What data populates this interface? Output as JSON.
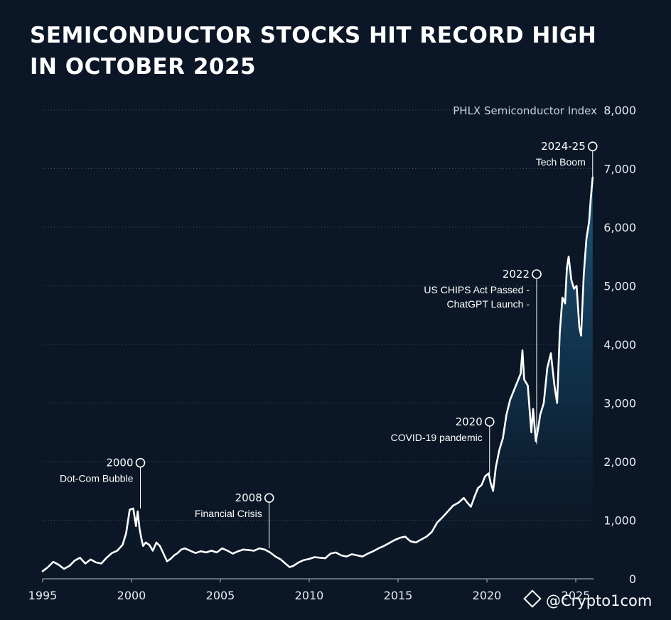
{
  "title": {
    "line1": "SEMICONDUCTOR STOCKS HIT RECORD HIGH",
    "line2": "IN OCTOBER 2025"
  },
  "watermark": {
    "text": "@Crypto1com",
    "icon": "binance-diamond-icon"
  },
  "colors": {
    "background": "#0b1726",
    "line": "#ffffff",
    "area_top": "#1f5a80",
    "grid": "#3f5668"
  },
  "chart_data": {
    "type": "area",
    "title": "SEMICONDUCTOR STOCKS HIT RECORD HIGH IN OCTOBER 2025",
    "series_name": "PHLX Semiconductor Index",
    "xlabel": "",
    "ylabel": "",
    "xlim": [
      1995,
      2026
    ],
    "ylim": [
      0,
      8000
    ],
    "grid": true,
    "y_axis_position": "right",
    "y_ticks": [
      0,
      1000,
      2000,
      3000,
      4000,
      5000,
      6000,
      7000,
      8000
    ],
    "y_tick_labels": [
      "0",
      "1,000",
      "2,000",
      "3,000",
      "4,000",
      "5,000",
      "6,000",
      "7,000",
      "8,000"
    ],
    "x_ticks": [
      1995,
      2000,
      2005,
      2010,
      2015,
      2020,
      2025
    ],
    "x_tick_labels": [
      "1995",
      "2000",
      "2005",
      "2010",
      "2015",
      "2020",
      "2025"
    ],
    "x": [
      1995.0,
      1995.3,
      1995.6,
      1995.9,
      1996.2,
      1996.5,
      1996.8,
      1997.1,
      1997.4,
      1997.7,
      1998.0,
      1998.3,
      1998.6,
      1998.9,
      1999.2,
      1999.5,
      1999.7,
      1999.9,
      2000.1,
      2000.25,
      2000.35,
      2000.45,
      2000.55,
      2000.65,
      2000.8,
      2001.0,
      2001.2,
      2001.4,
      2001.6,
      2001.8,
      2002.0,
      2002.2,
      2002.4,
      2002.6,
      2002.8,
      2003.0,
      2003.3,
      2003.6,
      2003.9,
      2004.2,
      2004.5,
      2004.8,
      2005.1,
      2005.4,
      2005.7,
      2006.0,
      2006.3,
      2006.6,
      2006.9,
      2007.2,
      2007.5,
      2007.8,
      2008.1,
      2008.4,
      2008.7,
      2008.9,
      2009.1,
      2009.4,
      2009.7,
      2010.0,
      2010.3,
      2010.6,
      2010.9,
      2011.2,
      2011.5,
      2011.8,
      2012.1,
      2012.4,
      2012.7,
      2013.0,
      2013.3,
      2013.6,
      2013.9,
      2014.2,
      2014.5,
      2014.8,
      2015.1,
      2015.4,
      2015.7,
      2016.0,
      2016.3,
      2016.6,
      2016.9,
      2017.2,
      2017.5,
      2017.8,
      2018.1,
      2018.4,
      2018.7,
      2018.9,
      2019.1,
      2019.3,
      2019.5,
      2019.7,
      2019.9,
      2020.1,
      2020.2,
      2020.35,
      2020.5,
      2020.7,
      2020.9,
      2021.1,
      2021.3,
      2021.5,
      2021.7,
      2021.9,
      2022.0,
      2022.1,
      2022.3,
      2022.5,
      2022.6,
      2022.75,
      2022.85,
      2023.0,
      2023.2,
      2023.4,
      2023.6,
      2023.8,
      2023.95,
      2024.1,
      2024.25,
      2024.4,
      2024.5,
      2024.6,
      2024.75,
      2024.9,
      2025.05,
      2025.2,
      2025.3,
      2025.45,
      2025.6,
      2025.75,
      2025.85,
      2025.95
    ],
    "y": [
      130,
      200,
      290,
      240,
      170,
      220,
      310,
      360,
      260,
      330,
      280,
      260,
      360,
      440,
      480,
      580,
      780,
      1180,
      1200,
      900,
      1150,
      860,
      700,
      560,
      620,
      580,
      480,
      620,
      560,
      430,
      300,
      340,
      400,
      440,
      500,
      520,
      480,
      440,
      470,
      450,
      480,
      450,
      520,
      480,
      430,
      470,
      500,
      490,
      480,
      520,
      500,
      450,
      380,
      330,
      250,
      200,
      220,
      280,
      320,
      340,
      370,
      360,
      350,
      430,
      450,
      400,
      380,
      420,
      400,
      380,
      430,
      470,
      520,
      560,
      610,
      660,
      700,
      720,
      640,
      620,
      670,
      720,
      800,
      960,
      1050,
      1150,
      1250,
      1300,
      1380,
      1300,
      1230,
      1400,
      1550,
      1600,
      1750,
      1800,
      1650,
      1500,
      1900,
      2200,
      2400,
      2800,
      3050,
      3200,
      3350,
      3500,
      3900,
      3400,
      3300,
      2500,
      2900,
      2350,
      2500,
      2800,
      3000,
      3600,
      3850,
      3300,
      3000,
      4200,
      4800,
      4700,
      5300,
      5500,
      5100,
      4950,
      5000,
      4300,
      4150,
      5200,
      5800,
      6100,
      6500,
      6850
    ],
    "annotations": [
      {
        "year": "2000",
        "label_lines": [
          "Dot-Com Bubble"
        ],
        "x": 2000.5,
        "y_marker": 1980,
        "y_point": 1200,
        "align": "end"
      },
      {
        "year": "2008",
        "label_lines": [
          "Financial Crisis"
        ],
        "x": 2007.75,
        "y_marker": 1380,
        "y_point": 520,
        "align": "end"
      },
      {
        "year": "2020",
        "label_lines": [
          "COVID-19 pandemic"
        ],
        "x": 2020.15,
        "y_marker": 2680,
        "y_point": 1800,
        "align": "end"
      },
      {
        "year": "2022",
        "label_lines": [
          "US CHIPS Act Passed -",
          "ChatGPT Launch -"
        ],
        "x": 2022.8,
        "y_marker": 5200,
        "y_point": 2300,
        "align": "end"
      },
      {
        "year": "2024-25",
        "label_lines": [
          "Tech Boom"
        ],
        "x": 2025.95,
        "y_marker": 7380,
        "y_point": 6850,
        "align": "end"
      }
    ]
  }
}
